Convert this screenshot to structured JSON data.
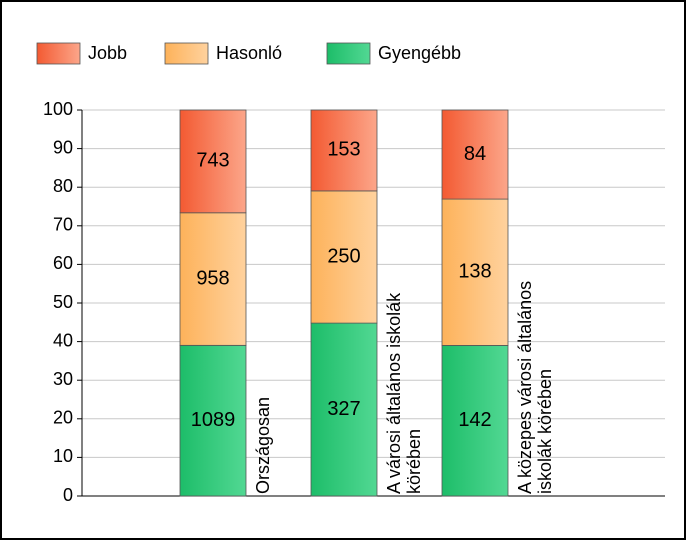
{
  "chart_data": {
    "type": "bar",
    "stack": "percent",
    "categories": [
      [
        "Országosan"
      ],
      [
        "A városi általános iskolák",
        "körében"
      ],
      [
        "A közepes városi általános",
        "iskolák körében"
      ]
    ],
    "series": [
      {
        "name": "Jobb",
        "colors": [
          "#f35a32",
          "#fca68a"
        ],
        "values": [
          743,
          153,
          84
        ]
      },
      {
        "name": "Hasonló",
        "colors": [
          "#fdb25a",
          "#ffd29e"
        ],
        "values": [
          958,
          250,
          138
        ]
      },
      {
        "name": "Gyengébb",
        "colors": [
          "#1dbd69",
          "#52d893"
        ],
        "values": [
          1089,
          327,
          142
        ]
      }
    ],
    "ylim": [
      0,
      100
    ],
    "yticks": [
      0,
      10,
      20,
      30,
      40,
      50,
      60,
      70,
      80,
      90,
      100
    ],
    "grid": true,
    "legend": "top"
  }
}
